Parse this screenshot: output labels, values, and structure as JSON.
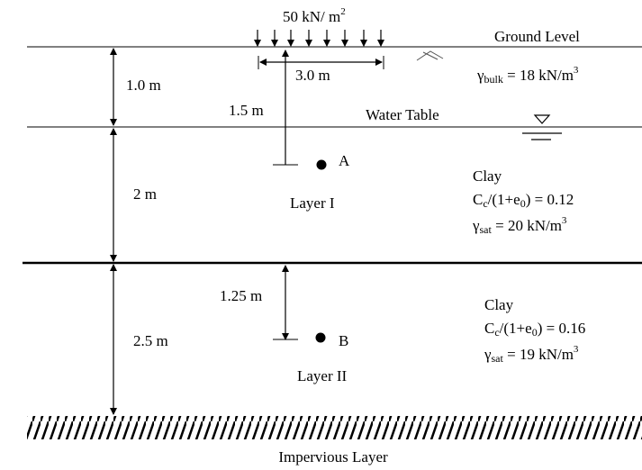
{
  "load": {
    "magnitude": "50 kN/ m",
    "exponent": "2",
    "width": "3.0 m"
  },
  "ground_level": "Ground Level",
  "water_table": "Water Table",
  "top_layer": {
    "gamma": "γ",
    "gamma_sub": "bulk",
    "value": " = 18 kN/m",
    "exponent": "3",
    "thickness": "1.0 m"
  },
  "layer1": {
    "name": "Layer I",
    "thickness": "2 m",
    "depth_to_point": "1.5 m",
    "point": "A",
    "soil": "Clay",
    "cc_prefix": "C",
    "cc_sub": "c",
    "cc_mid": "/(1+e",
    "e_sub": "0",
    "cc_value": ") = 0.12",
    "gamma": "γ",
    "gamma_sub": "sat",
    "gamma_value": " = 20 kN/m",
    "exponent": "3"
  },
  "layer2": {
    "name": "Layer II",
    "thickness": "2.5 m",
    "depth_to_point": "1.25 m",
    "point": "B",
    "soil": "Clay",
    "cc_prefix": "C",
    "cc_sub": "c",
    "cc_mid": "/(1+e",
    "e_sub": "0",
    "cc_value": ") = 0.16",
    "gamma": "γ",
    "gamma_sub": "sat",
    "gamma_value": " = 19 kN/m",
    "exponent": "3"
  },
  "impervious": "Impervious Layer"
}
